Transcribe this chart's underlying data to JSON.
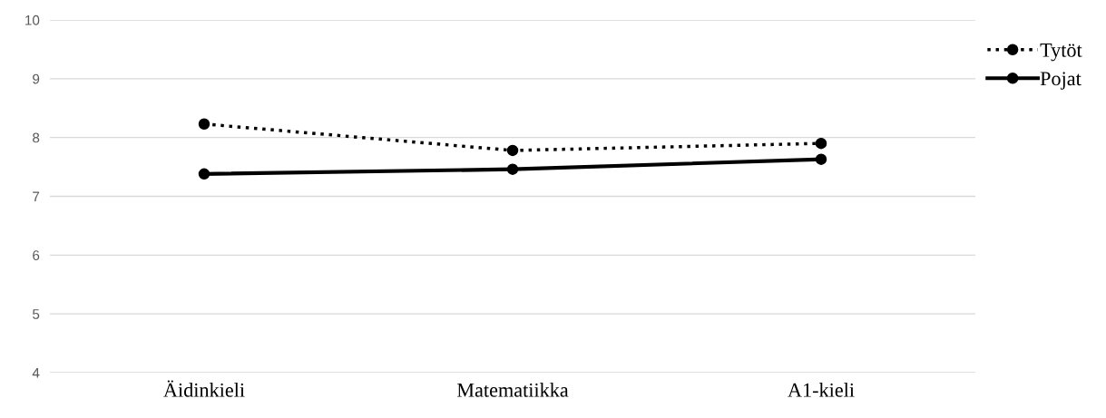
{
  "chart_data": {
    "type": "line",
    "categories": [
      "Äidinkieli",
      "Matematiikka",
      "A1-kieli"
    ],
    "series": [
      {
        "name": "Tytöt",
        "color": "#000000",
        "values": [
          8.23,
          7.78,
          7.9
        ],
        "line_style": "dotted",
        "marker": "circle"
      },
      {
        "name": "Pojat",
        "color": "#000000",
        "values": [
          7.38,
          7.46,
          7.63
        ],
        "line_style": "solid",
        "marker": "circle"
      }
    ],
    "ylim": [
      4,
      10
    ],
    "yticks": [
      4,
      5,
      6,
      7,
      8,
      9,
      10
    ],
    "grid": "y",
    "legend": "top right"
  }
}
